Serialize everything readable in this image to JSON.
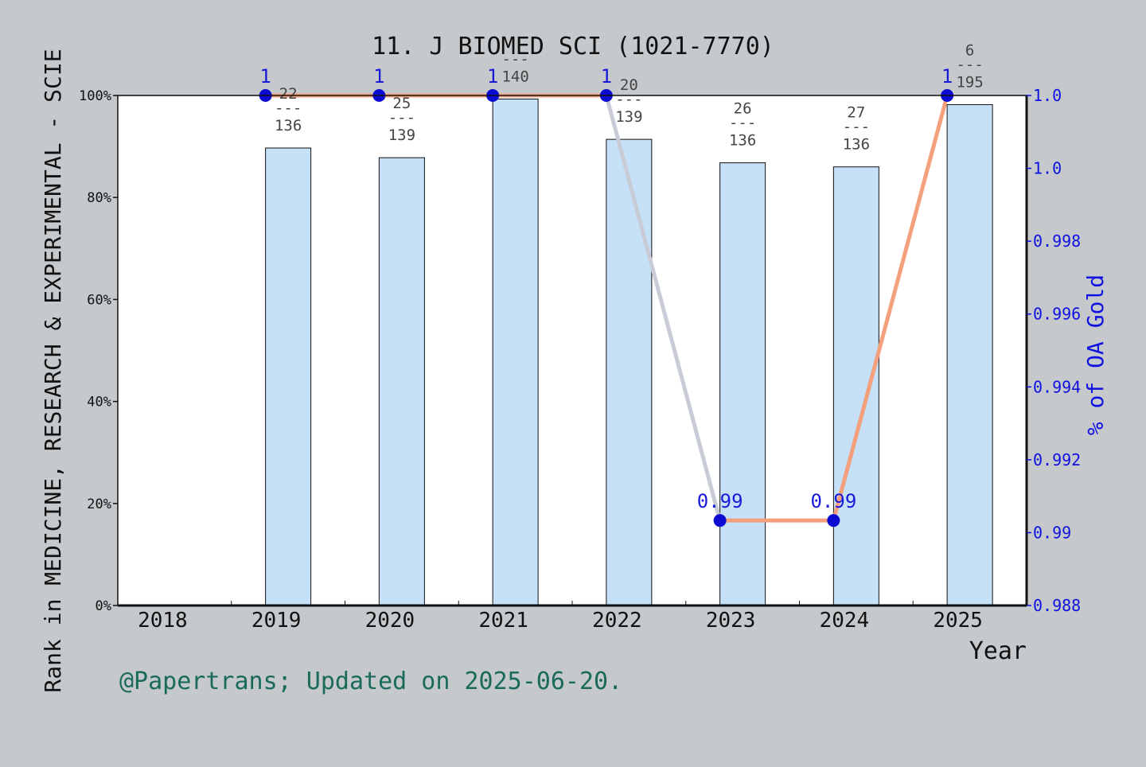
{
  "chart_data": {
    "type": "bar",
    "title": "11. J BIOMED SCI (1021-7770)",
    "xlabel": "Year",
    "ylabel_left": "Rank in MEDICINE, RESEARCH & EXPERIMENTAL - SCIE",
    "ylabel_right": "% of OA Gold",
    "footer": "@Papertrans; Updated on 2025-06-20.",
    "categories": [
      "2018",
      "2019",
      "2020",
      "2021",
      "2022",
      "2023",
      "2024",
      "2025"
    ],
    "left_axis": {
      "min": 0,
      "max": 100,
      "ticks": [
        "0%",
        "20%",
        "40%",
        "60%",
        "80%",
        "100%"
      ]
    },
    "right_axis": {
      "min": 0.988,
      "max": 1.0,
      "ticks": [
        "0.988",
        "0.99",
        "0.992",
        "0.994",
        "0.996",
        "0.998",
        "1.0",
        "1.0"
      ]
    },
    "bars": {
      "values": [
        null,
        89.7,
        87.8,
        99.3,
        91.4,
        86.8,
        86.0,
        98.2
      ],
      "rank_labels": [
        null,
        {
          "rank": "22",
          "total": "136"
        },
        {
          "rank": "25",
          "total": "139"
        },
        {
          "rank": "",
          "total": "140"
        },
        {
          "rank": "20",
          "total": "139"
        },
        {
          "rank": "26",
          "total": "136"
        },
        {
          "rank": "27",
          "total": "136"
        },
        {
          "rank": "6",
          "total": "195"
        }
      ],
      "separator": "---",
      "color": "#c5e0f7"
    },
    "oa_line": {
      "values": [
        null,
        1,
        1,
        1,
        1,
        0.99,
        0.99,
        1
      ],
      "labels": [
        "",
        "1",
        "1",
        "1",
        "1",
        "0.99",
        "0.99",
        "1"
      ],
      "line_color": "#f4a07c",
      "marker_color": "#0a0ad0"
    }
  }
}
